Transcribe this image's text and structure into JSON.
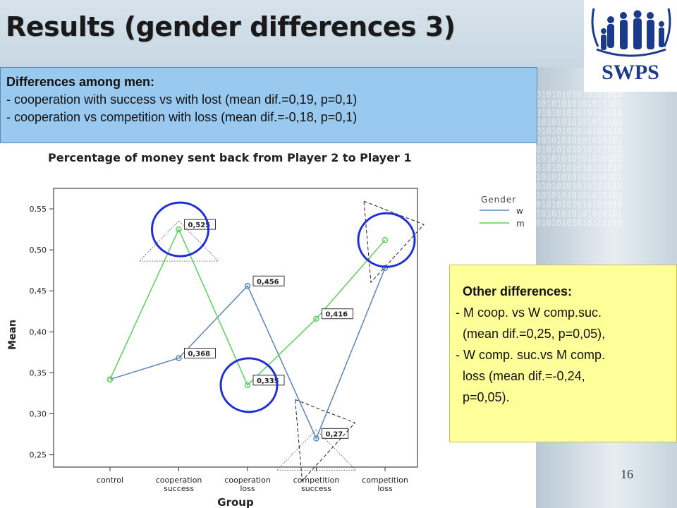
{
  "slide": {
    "title": "Results (gender differences 3)",
    "page_number": "16"
  },
  "logo": {
    "text": "SWPS",
    "icon": "family-figures-icon"
  },
  "men_box": {
    "heading": "Differences among men:",
    "lines": [
      "- cooperation with success vs with lost (mean dif.=0,19, p=0,1)",
      "- cooperation vs competition with loss (mean dif.=-0,18, p=0,1)"
    ]
  },
  "other_box": {
    "heading": "Other differences:",
    "lines": [
      "- M coop. vs W comp.suc.",
      "  (mean dif.=0,25, p=0,05),",
      "- W comp. suc.vs M comp.",
      "  loss (mean dif.=-0,24,",
      "  p=0,05)."
    ]
  },
  "chart_data": {
    "type": "line",
    "title": "Percentage of money sent back from Player 2 to Player 1",
    "xlabel": "Group",
    "ylabel": "Mean",
    "ylim": [
      0.235,
      0.575
    ],
    "yticks": [
      0.25,
      0.3,
      0.35,
      0.4,
      0.45,
      0.5,
      0.55
    ],
    "ytick_labels": [
      "0,25",
      "0,30",
      "0,35",
      "0,40",
      "0,45",
      "0,50",
      "0,55"
    ],
    "categories": [
      [
        "control"
      ],
      [
        "cooperation",
        "success"
      ],
      [
        "cooperation",
        "loss"
      ],
      [
        "competition",
        "success"
      ],
      [
        "competition",
        "loss"
      ]
    ],
    "legend_title": "Gender",
    "legend_position": "right",
    "series": [
      {
        "name": "w",
        "color": "#5b84b8",
        "values": [
          0.342,
          0.368,
          0.456,
          0.27,
          0.478
        ],
        "labels": [
          "",
          "0,368",
          "0,456",
          "0,27",
          ""
        ]
      },
      {
        "name": "m",
        "color": "#5ccf5c",
        "values": [
          0.342,
          0.525,
          0.335,
          0.416,
          0.512
        ],
        "labels": [
          "",
          "0,525",
          "0,335",
          "0,416",
          ""
        ]
      }
    ],
    "annotations": {
      "circles": [
        {
          "cat": 1,
          "value": 0.525
        },
        {
          "cat": 2,
          "value": 0.335
        },
        {
          "cat": 4,
          "value": 0.512
        }
      ],
      "dotted_triangles": [
        {
          "cat": 1,
          "value": 0.525
        },
        {
          "cat": 3,
          "value": 0.27
        }
      ],
      "dashed_triangles": [
        {
          "cat": 4,
          "value": 0.512
        },
        {
          "cat": 3,
          "value": 0.27
        }
      ]
    }
  }
}
